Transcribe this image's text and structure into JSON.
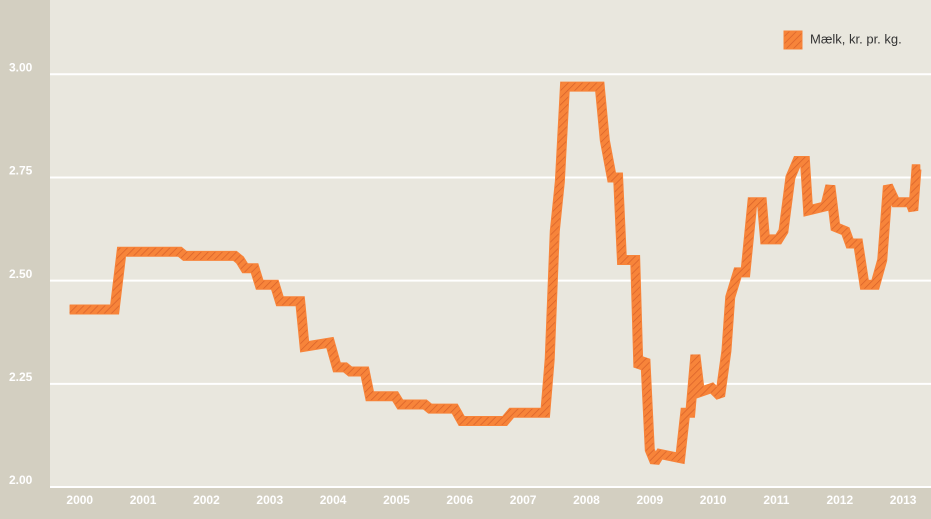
{
  "chart_data": {
    "type": "line",
    "series": [
      {
        "name": "Mælk, kr. pr. kg.",
        "color": "#f7843a",
        "x": [
          1999.84,
          2000.55,
          2000.66,
          2001.58,
          2001.66,
          2002.45,
          2002.53,
          2002.61,
          2002.76,
          2002.84,
          2003.08,
          2003.16,
          2003.48,
          2003.55,
          2003.95,
          2004.06,
          2004.19,
          2004.27,
          2004.5,
          2004.58,
          2004.98,
          2005.06,
          2005.45,
          2005.53,
          2005.92,
          2006.03,
          2006.71,
          2006.82,
          2007.35,
          2007.42,
          2007.5,
          2007.58,
          2007.66,
          2007.82,
          2008.21,
          2008.29,
          2008.4,
          2008.5,
          2008.56,
          2008.77,
          2008.82,
          2008.93,
          2009.0,
          2009.08,
          2009.16,
          2009.48,
          2009.56,
          2009.64,
          2009.72,
          2009.79,
          2009.98,
          2010.11,
          2010.21,
          2010.27,
          2010.39,
          2010.51,
          2010.62,
          2010.77,
          2010.82,
          2011.03,
          2011.11,
          2011.22,
          2011.33,
          2011.45,
          2011.5,
          2011.77,
          2011.85,
          2011.93,
          2012.09,
          2012.16,
          2012.29,
          2012.39,
          2012.56,
          2012.67,
          2012.76,
          2012.88,
          2013.11,
          2013.16,
          2013.21,
          2013.27
        ],
        "values": [
          2.43,
          2.43,
          2.57,
          2.57,
          2.56,
          2.56,
          2.55,
          2.53,
          2.53,
          2.49,
          2.49,
          2.45,
          2.45,
          2.34,
          2.35,
          2.29,
          2.29,
          2.28,
          2.28,
          2.22,
          2.22,
          2.2,
          2.2,
          2.19,
          2.19,
          2.16,
          2.16,
          2.18,
          2.18,
          2.31,
          2.62,
          2.74,
          2.97,
          2.97,
          2.97,
          2.84,
          2.75,
          2.75,
          2.55,
          2.55,
          2.29,
          2.31,
          2.09,
          2.06,
          2.08,
          2.07,
          2.18,
          2.18,
          2.32,
          2.23,
          2.24,
          2.22,
          2.33,
          2.46,
          2.52,
          2.52,
          2.69,
          2.69,
          2.6,
          2.6,
          2.62,
          2.75,
          2.79,
          2.79,
          2.67,
          2.68,
          2.73,
          2.63,
          2.62,
          2.59,
          2.59,
          2.49,
          2.49,
          2.55,
          2.73,
          2.69,
          2.69,
          2.67,
          2.77,
          2.77
        ]
      }
    ],
    "xlim": [
      1999.53,
      2013.44
    ],
    "xticks": [
      2000,
      2001,
      2002,
      2003,
      2004,
      2005,
      2006,
      2007,
      2008,
      2009,
      2010,
      2011,
      2012,
      2013
    ],
    "ylim": [
      2.0,
      3.18
    ],
    "yticks": [
      {
        "value": 2.0,
        "label": "2.00"
      },
      {
        "value": 2.25,
        "label": "2.25"
      },
      {
        "value": 2.5,
        "label": "2.50"
      },
      {
        "value": 2.75,
        "label": "2.75"
      },
      {
        "value": 3.0,
        "label": "3.00"
      }
    ],
    "grid": true,
    "legend": "upper right"
  }
}
